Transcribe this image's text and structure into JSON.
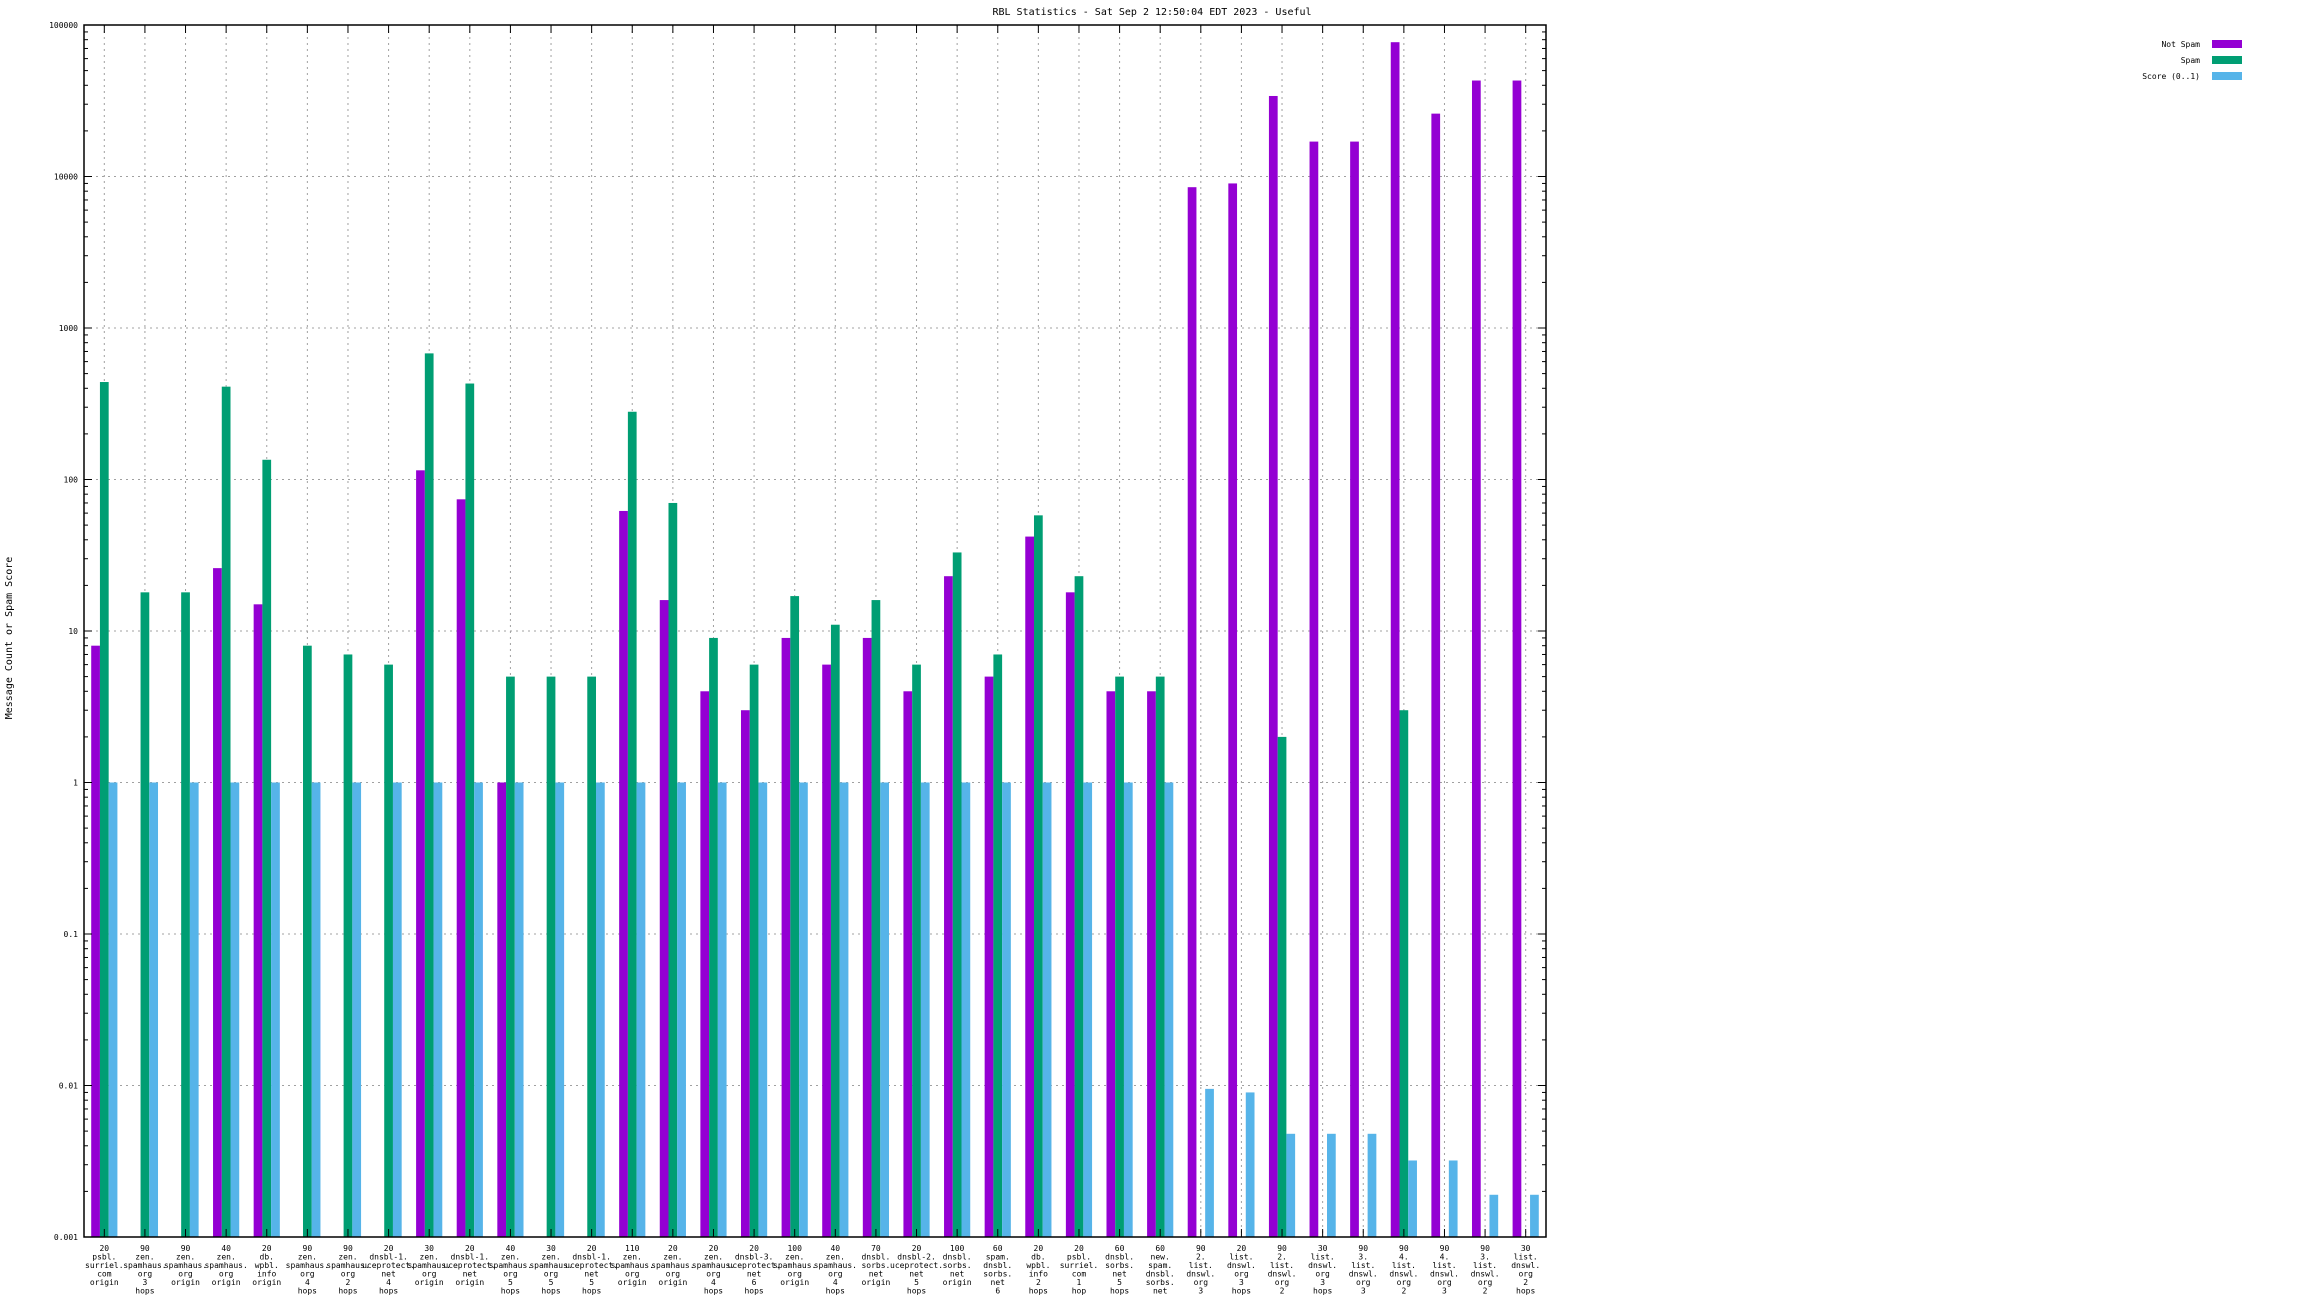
{
  "chart_data": {
    "type": "bar",
    "title": "RBL Statistics - Sat Sep  2 12:50:04 EDT 2023 - Useful",
    "ylabel": "Message Count or Spam Score",
    "xlabel": "",
    "yscale": "log",
    "ylim": [
      0.001,
      100000
    ],
    "y_tick_labels": [
      "0.001",
      "0.01",
      "0.1",
      "1",
      "10",
      "100",
      "1000",
      "10000",
      "100000"
    ],
    "grid": true,
    "legend_position": "top-right",
    "categories": [
      "20 psbl. surriel. com origin",
      "90 zen. spamhaus. org 3 hops",
      "90 zen. spamhaus. org origin",
      "40 zen. spamhaus. org origin",
      "20 db. wpbl. info origin",
      "90 zen. spamhaus. org 4 hops",
      "90 zen. spamhaus. org 2 hops",
      "20 dnsbl-1. uceprotect. net 4 hops",
      "30 zen. spamhaus. org origin",
      "20 dnsbl-1. uceprotect. net origin",
      "40 zen. spamhaus. org 5 hops",
      "30 zen. spamhaus. org 5 hops",
      "20 dnsbl-1. uceprotect. net 5 hops",
      "110 zen. spamhaus. org origin",
      "20 zen. spamhaus. org origin",
      "20 zen. spamhaus. org 4 hops",
      "20 dnsbl-3. uceprotect. net 6 hops",
      "100 zen. spamhaus. org origin",
      "40 zen. spamhaus. org 4 hops",
      "70 dnsbl. sorbs. net origin",
      "20 dnsbl-2. uceprotect. net 5 hops",
      "100 dnsbl. sorbs. net origin",
      "60 spam. dnsbl. sorbs. net 6 hops",
      "20 db. wpbl. info 2 hops",
      "20 psbl. surriel. com 1 hop",
      "60 dnsbl. sorbs. net 5 hops",
      "60 new. spam. dnsbl. sorbs. net 5 hops",
      "90 2. list. dnswl. org 3 hops",
      "20 list. dnswl. org 3 hops",
      "90 2. list. dnswl. org 2 hops",
      "30 list. dnswl. org 3 hops",
      "90 3. list. dnswl. org 3 hops",
      "90 4. list. dnswl. org 2 hops",
      "90 4. list. dnswl. org 3 hops",
      "90 3. list. dnswl. org 2 hops",
      "30 list. dnswl. org 2 hops"
    ],
    "series": [
      {
        "name": "Not Spam",
        "color": "#9400d3",
        "values": [
          8,
          0,
          0,
          26,
          15,
          0,
          0,
          0,
          115,
          74,
          1,
          0,
          0,
          62,
          16,
          4,
          3,
          9,
          6,
          9,
          4,
          23,
          5,
          42,
          18,
          4,
          4,
          8500,
          9000,
          34000,
          17000,
          17000,
          77000,
          26000,
          43000,
          43000
        ]
      },
      {
        "name": "Spam",
        "color": "#009e73",
        "values": [
          440,
          18,
          18,
          410,
          135,
          8,
          7,
          6,
          680,
          430,
          5,
          5,
          5,
          280,
          70,
          9,
          6,
          17,
          11,
          16,
          6,
          33,
          7,
          58,
          23,
          5,
          5,
          0,
          0,
          2,
          0,
          0,
          3,
          0,
          0,
          0
        ]
      },
      {
        "name": "Score (0..1)",
        "color": "#56b4e9",
        "values": [
          1,
          1,
          1,
          1,
          1,
          1,
          1,
          1,
          1,
          1,
          1,
          1,
          1,
          1,
          1,
          1,
          1,
          1,
          1,
          1,
          1,
          1,
          1,
          1,
          1,
          1,
          1,
          0.0095,
          0.009,
          0.0048,
          0.0048,
          0.0048,
          0.0032,
          0.0032,
          0.0019,
          0.0019
        ]
      }
    ]
  }
}
